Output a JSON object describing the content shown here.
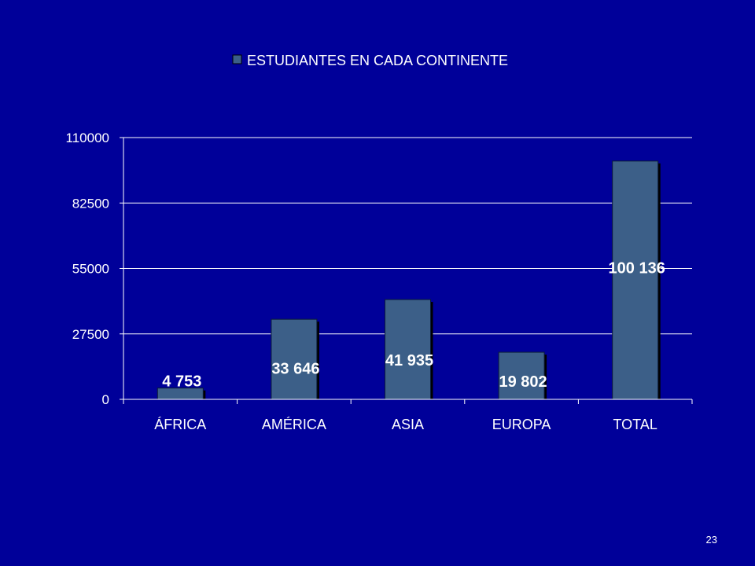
{
  "slide": {
    "number": "23"
  },
  "colors": {
    "background": "#000099",
    "bar": "#3C5F88",
    "bar_shadow": "#000000",
    "gridline": "#FFFFFF",
    "text": "#FFFFFF"
  },
  "chart_data": {
    "type": "bar",
    "categories": [
      "ÁFRICA",
      "AMÉRICA",
      "ASIA",
      "EUROPA",
      "TOTAL"
    ],
    "series": [
      {
        "name": "ESTUDIANTES EN CADA CONTINENTE",
        "values": [
          4753,
          33646,
          41935,
          19802,
          100136
        ],
        "labels": [
          "4 753",
          "33 646",
          "41 935",
          "19 802",
          "100 136"
        ]
      }
    ],
    "title": "",
    "xlabel": "",
    "ylabel": "",
    "ylim": [
      0,
      110000
    ],
    "yticks": [
      0,
      27500,
      55000,
      82500,
      110000
    ],
    "ytick_labels": [
      "0",
      "27500",
      "55000",
      "82500",
      "110000"
    ],
    "grid": true,
    "legend": "top-center"
  }
}
